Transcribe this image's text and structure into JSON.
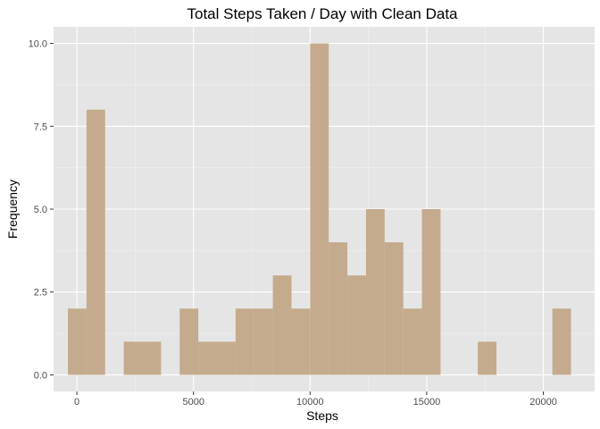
{
  "chart_data": {
    "type": "bar",
    "title": "Total Steps Taken / Day with Clean Data",
    "xlabel": "Steps",
    "ylabel": "Frequency",
    "xlim": [
      -1000,
      22200
    ],
    "ylim": [
      -0.5,
      10.5
    ],
    "x_ticks": [
      0,
      5000,
      10000,
      15000,
      20000
    ],
    "x_tick_labels": [
      "0",
      "5000",
      "10000",
      "15000",
      "20000"
    ],
    "y_ticks": [
      0,
      2.5,
      5,
      7.5,
      10
    ],
    "y_tick_labels": [
      "0.0",
      "2.5",
      "5.0",
      "7.5",
      "10.0"
    ],
    "grid": true,
    "colors": {
      "bar_fill": "#c4ab8d",
      "panel_background": "#e5e5e5",
      "grid_major": "#ffffff",
      "grid_minor": "#f2f2f2",
      "tick_color": "#333333"
    },
    "bins": [
      {
        "x0": -387,
        "x1": 412,
        "count": 2
      },
      {
        "x0": 412,
        "x1": 1211,
        "count": 8
      },
      {
        "x0": 1211,
        "x1": 2010,
        "count": 0
      },
      {
        "x0": 2010,
        "x1": 2809,
        "count": 1
      },
      {
        "x0": 2809,
        "x1": 3608,
        "count": 1
      },
      {
        "x0": 3608,
        "x1": 4407,
        "count": 0
      },
      {
        "x0": 4407,
        "x1": 5206,
        "count": 2
      },
      {
        "x0": 5206,
        "x1": 6005,
        "count": 1
      },
      {
        "x0": 6005,
        "x1": 6804,
        "count": 1
      },
      {
        "x0": 6804,
        "x1": 7603,
        "count": 2
      },
      {
        "x0": 7603,
        "x1": 8402,
        "count": 2
      },
      {
        "x0": 8402,
        "x1": 9201,
        "count": 3
      },
      {
        "x0": 9201,
        "x1": 10000,
        "count": 2
      },
      {
        "x0": 10000,
        "x1": 10799,
        "count": 10
      },
      {
        "x0": 10799,
        "x1": 11598,
        "count": 4
      },
      {
        "x0": 11598,
        "x1": 12397,
        "count": 3
      },
      {
        "x0": 12397,
        "x1": 13196,
        "count": 5
      },
      {
        "x0": 13196,
        "x1": 13995,
        "count": 4
      },
      {
        "x0": 13995,
        "x1": 14794,
        "count": 2
      },
      {
        "x0": 14794,
        "x1": 15593,
        "count": 5
      },
      {
        "x0": 15593,
        "x1": 16392,
        "count": 0
      },
      {
        "x0": 16392,
        "x1": 17191,
        "count": 0
      },
      {
        "x0": 17191,
        "x1": 17990,
        "count": 1
      },
      {
        "x0": 17990,
        "x1": 18789,
        "count": 0
      },
      {
        "x0": 18789,
        "x1": 19588,
        "count": 0
      },
      {
        "x0": 19588,
        "x1": 20387,
        "count": 0
      },
      {
        "x0": 20387,
        "x1": 21186,
        "count": 2
      }
    ]
  }
}
